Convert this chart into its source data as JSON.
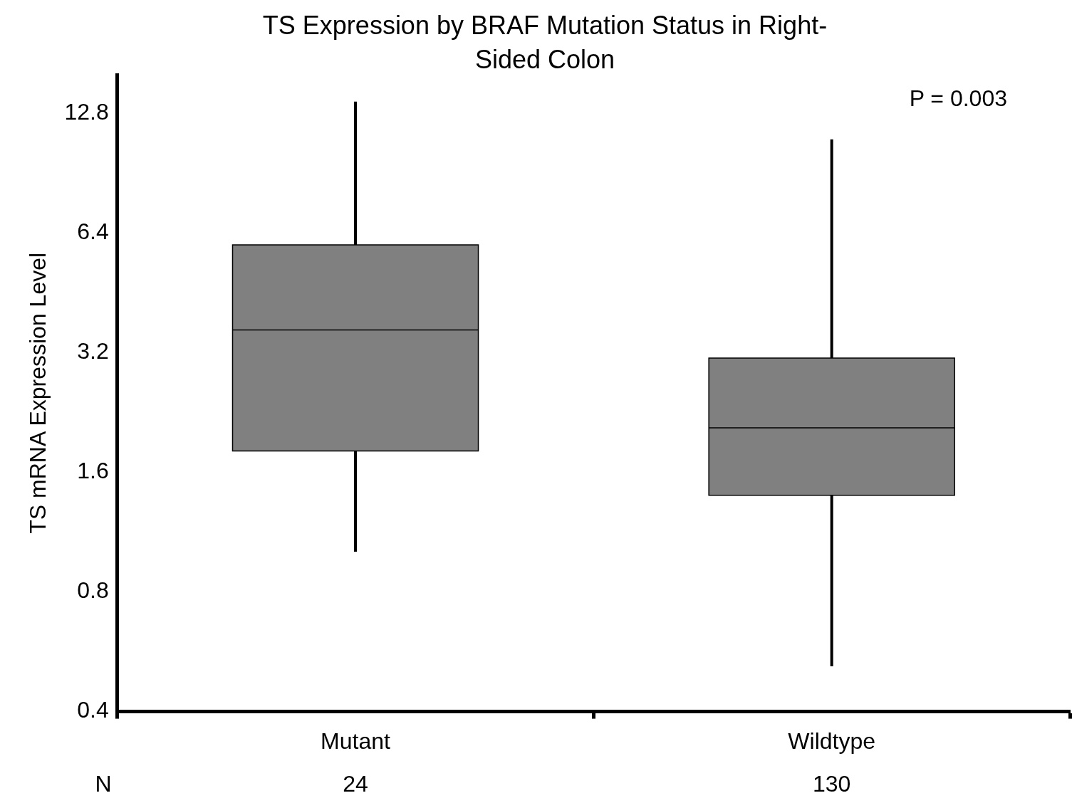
{
  "chart_data": {
    "type": "box",
    "title": "TS Expression by BRAF Mutation Status in Right-Sided Colon",
    "ylabel": "TS mRNA Expression Level",
    "categories": [
      "Mutant",
      "Wildtype"
    ],
    "color": "#808080",
    "log": true,
    "grid": false,
    "legend": false,
    "ylim": [
      0.4,
      16
    ],
    "yticks": [
      0.4,
      0.8,
      1.6,
      3.2,
      6.4,
      12.8
    ],
    "boxes": [
      {
        "low": 1.01,
        "q1": 1.81,
        "median": 3.65,
        "q3": 5.97,
        "high": 13.7
      },
      {
        "low": 0.52,
        "q1": 1.4,
        "median": 2.07,
        "q3": 3.1,
        "high": 11.0
      }
    ],
    "annotations": [
      "P = 0.003",
      "N",
      "24",
      "130"
    ]
  }
}
